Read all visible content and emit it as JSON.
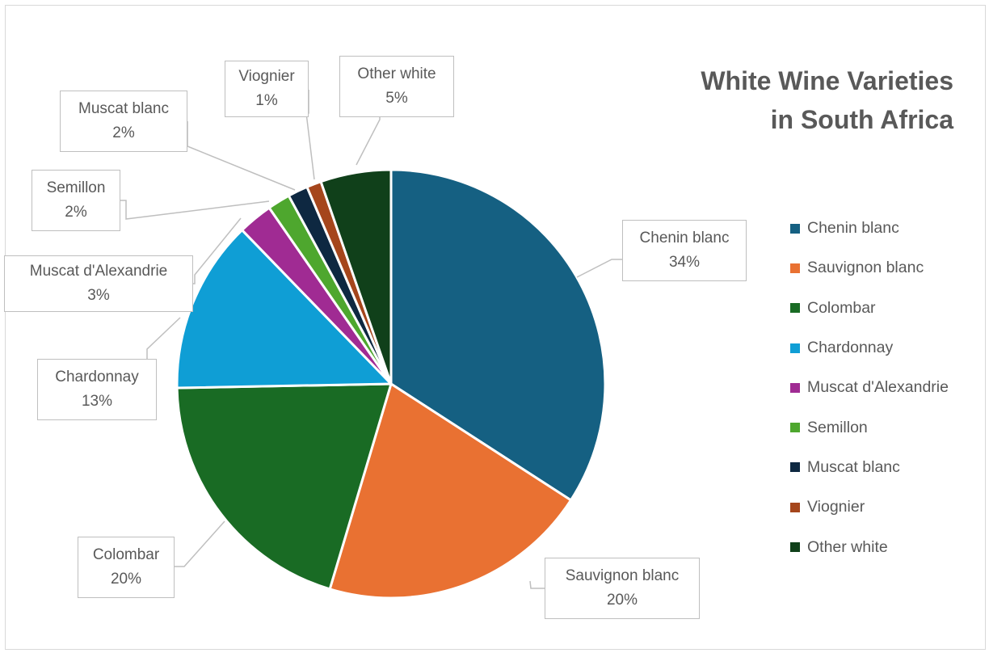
{
  "chart_data": {
    "type": "pie",
    "title_lines": [
      "White Wine Varieties",
      "in South Africa"
    ],
    "slices": [
      {
        "label": "Chenin blanc",
        "percent_label": "34%",
        "value": 34,
        "color": "#156082"
      },
      {
        "label": "Sauvignon blanc",
        "percent_label": "20%",
        "value": 20.4,
        "color": "#e97132"
      },
      {
        "label": "Colombar",
        "percent_label": "20%",
        "value": 20,
        "color": "#196b24"
      },
      {
        "label": "Chardonnay",
        "percent_label": "13%",
        "value": 13,
        "color": "#0f9ed5"
      },
      {
        "label": "Muscat d'Alexandrie",
        "percent_label": "3%",
        "value": 2.6,
        "color": "#a02b93"
      },
      {
        "label": "Semillon",
        "percent_label": "2%",
        "value": 1.7,
        "color": "#4ea72e"
      },
      {
        "label": "Muscat blanc",
        "percent_label": "2%",
        "value": 1.5,
        "color": "#0e2841"
      },
      {
        "label": "Viognier",
        "percent_label": "1%",
        "value": 1.1,
        "color": "#a5461c"
      },
      {
        "label": "Other white",
        "percent_label": "5%",
        "value": 5.3,
        "color": "#10401a"
      }
    ],
    "legend_position": "right"
  }
}
